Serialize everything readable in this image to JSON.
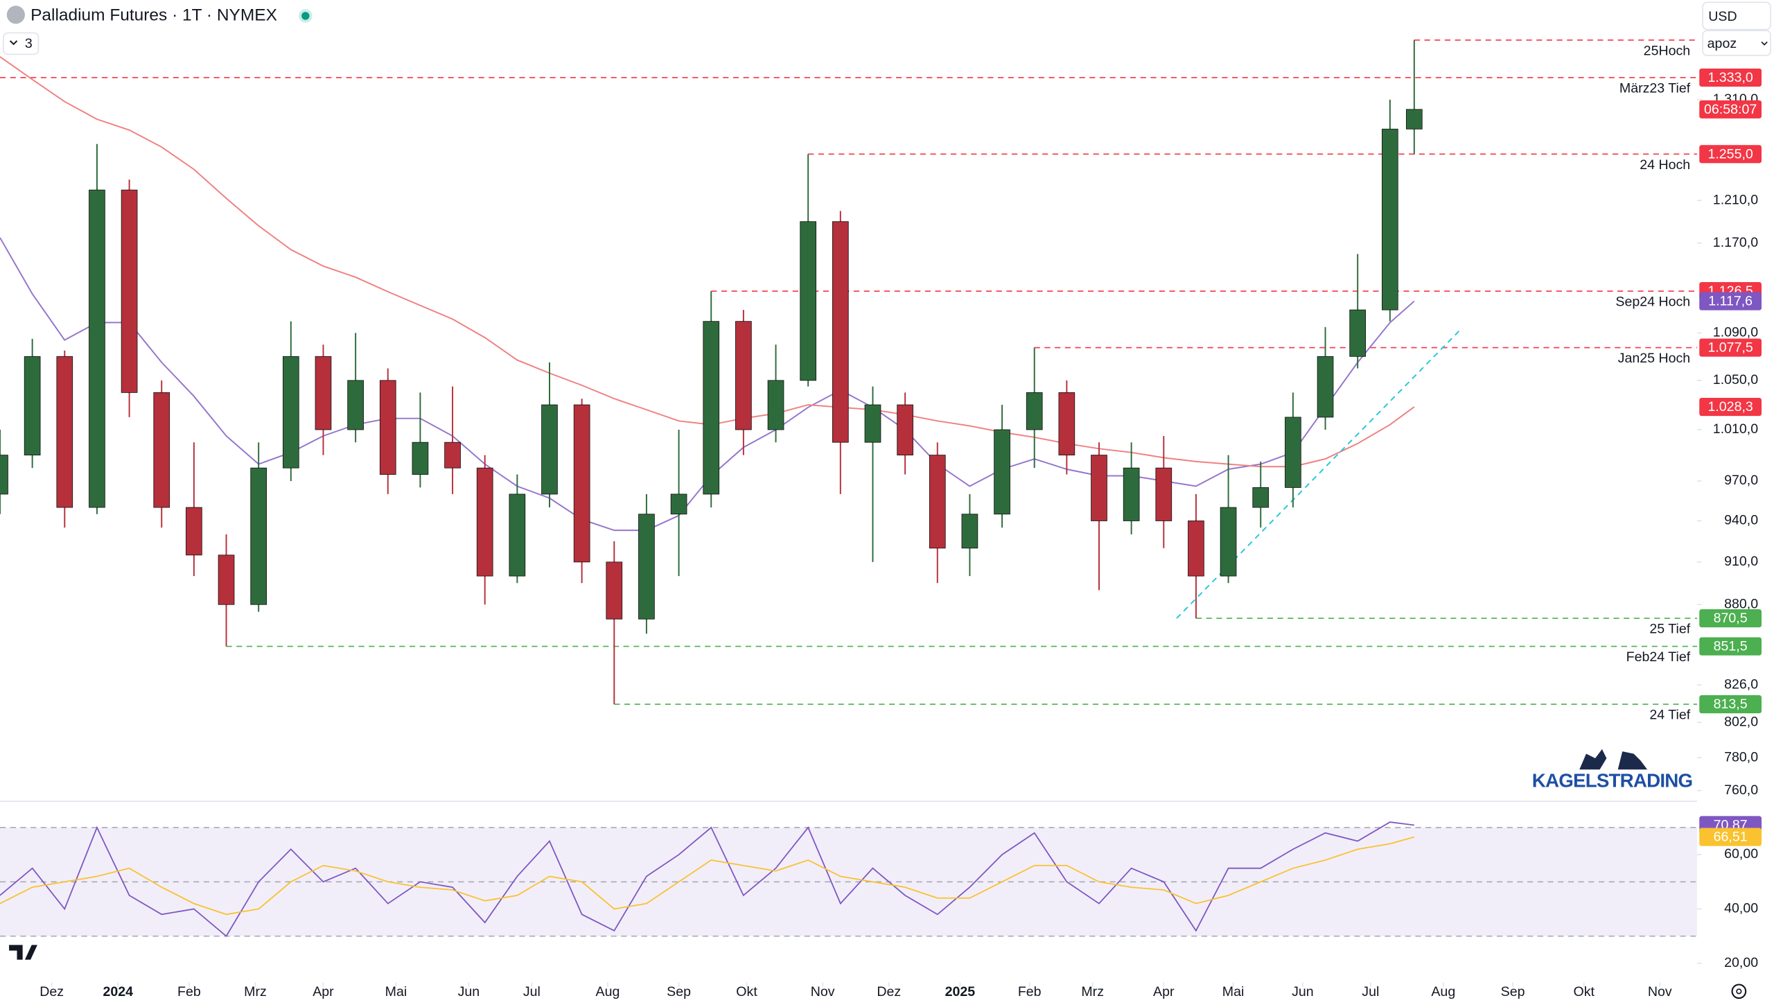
{
  "chart_data": {
    "type": "candlestick",
    "title": "Palladium Futures · 1T · NYMEX",
    "indicator_count": "3",
    "currency": "USD",
    "scale_mode": "apoz",
    "watermark": "KAGELSTRADING",
    "countdown": "06:58:07",
    "log_scale": true,
    "up_color": "#2e6b3c",
    "down_color": "#b5303b",
    "x": [
      0,
      2,
      4,
      6,
      8,
      10,
      12,
      14,
      16,
      18,
      20,
      22,
      24,
      26,
      28,
      30,
      32,
      34,
      36,
      38,
      40,
      42,
      44,
      46,
      48,
      50,
      52,
      54,
      56,
      58,
      60,
      62,
      64,
      66,
      68,
      70,
      72,
      74,
      76,
      78,
      80,
      82,
      84,
      86,
      87.5
    ],
    "open": [
      960,
      990,
      1070,
      950,
      1220,
      1040,
      950,
      915,
      880,
      980,
      1070,
      1010,
      1050,
      975,
      1000,
      980,
      900,
      960,
      1030,
      910,
      870,
      945,
      960,
      1100,
      1010,
      1050,
      1190,
      1000,
      1030,
      990,
      920,
      945,
      1010,
      1040,
      990,
      940,
      980,
      940,
      900,
      950,
      965,
      1020,
      1070,
      1110,
      1280
    ],
    "high": [
      1010,
      1085,
      1075,
      1265,
      1230,
      1050,
      1000,
      930,
      1000,
      1100,
      1080,
      1090,
      1060,
      1040,
      1045,
      990,
      975,
      1065,
      1035,
      925,
      960,
      1010,
      1126.5,
      1110,
      1080,
      1255,
      1200,
      1045,
      1040,
      1000,
      960,
      1030,
      1077.5,
      1050,
      1000,
      1000,
      1005,
      960,
      990,
      985,
      1040,
      1095,
      1160,
      1310,
      1373
    ],
    "low": [
      945,
      980,
      935,
      945,
      1020,
      935,
      900,
      851.5,
      875,
      970,
      990,
      1000,
      960,
      965,
      960,
      880,
      895,
      950,
      895,
      813.5,
      860,
      900,
      950,
      990,
      1000,
      1045,
      960,
      910,
      975,
      895,
      900,
      935,
      980,
      975,
      890,
      930,
      920,
      870.5,
      895,
      935,
      950,
      1010,
      1060,
      1100,
      1255
    ],
    "close": [
      990,
      1070,
      950,
      1220,
      1040,
      950,
      915,
      880,
      980,
      1070,
      1010,
      1050,
      975,
      1000,
      980,
      900,
      960,
      1030,
      910,
      870,
      945,
      960,
      1100,
      1010,
      1050,
      1190,
      1000,
      1030,
      990,
      920,
      945,
      1010,
      1040,
      990,
      940,
      980,
      940,
      900,
      950,
      965,
      1020,
      1070,
      1110,
      1280,
      1300
    ],
    "overlays": [
      {
        "color": "#9575cd",
        "tag_color": "#7e57c2",
        "value_label": "1.117,6",
        "values": [
          1175,
          1124,
          1084,
          1099,
          1099,
          1065,
          1037,
          1005,
          983,
          992,
          1005,
          1014,
          1019,
          1019,
          1005,
          983,
          966,
          957,
          941,
          933,
          933,
          944,
          974,
          996,
          1010,
          1028,
          1042,
          1028,
          1010,
          983,
          966,
          979,
          987,
          979,
          974,
          974,
          970,
          966,
          979,
          983,
          992,
          1028,
          1065,
          1099,
          1117.6
        ]
      },
      {
        "color": "#f08080",
        "tag_color": "#f23645",
        "value_label": "1.028,3",
        "values": [
          1355,
          1331,
          1308,
          1290,
          1279,
          1262,
          1240,
          1212,
          1186,
          1164,
          1149,
          1139,
          1126,
          1114,
          1102,
          1086,
          1067,
          1056,
          1046,
          1035,
          1026,
          1017,
          1014,
          1019,
          1023,
          1030,
          1028,
          1026,
          1022,
          1017,
          1013,
          1008,
          1004,
          999,
          995,
          992,
          988,
          985,
          983,
          981,
          981,
          987,
          999,
          1014,
          1028.3
        ]
      }
    ],
    "levels": [
      {
        "label": "25Hoch",
        "value": 1373,
        "x_start": 87.5,
        "color": "#f23645"
      },
      {
        "label": "März23 Tief",
        "value": 1333,
        "value_label": "1.333,0",
        "x_start": 0,
        "color": "#f23645"
      },
      {
        "label": "24 Hoch",
        "value": 1255,
        "value_label": "1.255,0",
        "x_start": 50,
        "color": "#f23645"
      },
      {
        "label": "Sep24 Hoch",
        "value": 1126.5,
        "value_label": "1.126,5",
        "x_start": 44,
        "color": "#f23645"
      },
      {
        "label": "Jan25 Hoch",
        "value": 1077.5,
        "value_label": "1.077,5",
        "x_start": 64,
        "color": "#f23645"
      },
      {
        "label": "25 Tief",
        "value": 870.5,
        "value_label": "870,5",
        "x_start": 74,
        "color": "#4caf50"
      },
      {
        "label": "Feb24 Tief",
        "value": 851.5,
        "value_label": "851,5",
        "x_start": 14,
        "color": "#4caf50"
      },
      {
        "label": "24 Tief",
        "value": 813.5,
        "value_label": "813,5",
        "x_start": 38,
        "color": "#4caf50"
      }
    ],
    "trendline": {
      "color": "#26c6da",
      "x": [
        72.8,
        90.3
      ],
      "values": [
        870.5,
        1092
      ]
    },
    "xlim": [
      0,
      105
    ],
    "xticks": [
      {
        "value": 3.2,
        "label": "Dez"
      },
      {
        "value": 7.3,
        "label": "2024"
      },
      {
        "value": 11.7,
        "label": "Feb"
      },
      {
        "value": 15.8,
        "label": "Mrz"
      },
      {
        "value": 20,
        "label": "Apr"
      },
      {
        "value": 24.5,
        "label": "Mai"
      },
      {
        "value": 29,
        "label": "Jun"
      },
      {
        "value": 32.9,
        "label": "Jul"
      },
      {
        "value": 37.6,
        "label": "Aug"
      },
      {
        "value": 42,
        "label": "Sep"
      },
      {
        "value": 46.2,
        "label": "Okt"
      },
      {
        "value": 50.9,
        "label": "Nov"
      },
      {
        "value": 55,
        "label": "Dez"
      },
      {
        "value": 59.4,
        "label": "2025"
      },
      {
        "value": 63.7,
        "label": "Feb"
      },
      {
        "value": 67.6,
        "label": "Mrz"
      },
      {
        "value": 72,
        "label": "Apr"
      },
      {
        "value": 76.3,
        "label": "Mai"
      },
      {
        "value": 80.6,
        "label": "Jun"
      },
      {
        "value": 84.8,
        "label": "Jul"
      },
      {
        "value": 89.3,
        "label": "Aug"
      },
      {
        "value": 93.6,
        "label": "Sep"
      },
      {
        "value": 98,
        "label": "Okt"
      },
      {
        "value": 102.7,
        "label": "Nov"
      }
    ],
    "ylim": [
      755,
      1382
    ],
    "yticks": [
      {
        "value": 760,
        "label": "760,0"
      },
      {
        "value": 780,
        "label": "780,0"
      },
      {
        "value": 802,
        "label": "802,0"
      },
      {
        "value": 826,
        "label": "826,0"
      },
      {
        "value": 880,
        "label": "880,0"
      },
      {
        "value": 910,
        "label": "910,0"
      },
      {
        "value": 940,
        "label": "940,0"
      },
      {
        "value": 970,
        "label": "970,0"
      },
      {
        "value": 1010,
        "label": "1.010,0"
      },
      {
        "value": 1050,
        "label": "1.050,0"
      },
      {
        "value": 1090,
        "label": "1.090,0"
      },
      {
        "value": 1170,
        "label": "1.170,0"
      },
      {
        "value": 1210,
        "label": "1.210,0"
      },
      {
        "value": 1310,
        "label": "1.310,0"
      }
    ],
    "rsi": {
      "ylim": [
        13,
        78
      ],
      "yticks": [
        {
          "value": 20,
          "label": "20,00"
        },
        {
          "value": 40,
          "label": "40,00"
        },
        {
          "value": 60,
          "label": "60,00"
        }
      ],
      "bands": [
        30,
        50,
        70
      ],
      "series": [
        {
          "color": "#7e57c2",
          "value_label": "70,87",
          "values": [
            45,
            55,
            40,
            70,
            45,
            38,
            40,
            30,
            50,
            62,
            50,
            55,
            42,
            50,
            48,
            35,
            52,
            65,
            38,
            32,
            52,
            60,
            70,
            45,
            55,
            70,
            42,
            55,
            45,
            38,
            48,
            60,
            68,
            50,
            42,
            55,
            50,
            32,
            55,
            55,
            62,
            68,
            65,
            72,
            70.87
          ]
        },
        {
          "color": "#f9c22e",
          "value_label": "66,51",
          "values": [
            42,
            48,
            50,
            52,
            55,
            48,
            42,
            38,
            40,
            50,
            56,
            54,
            50,
            48,
            47,
            43,
            45,
            52,
            50,
            40,
            42,
            50,
            58,
            56,
            54,
            58,
            52,
            50,
            48,
            44,
            44,
            50,
            56,
            56,
            50,
            48,
            47,
            42,
            45,
            50,
            55,
            58,
            62,
            64,
            66.51
          ]
        }
      ]
    }
  }
}
